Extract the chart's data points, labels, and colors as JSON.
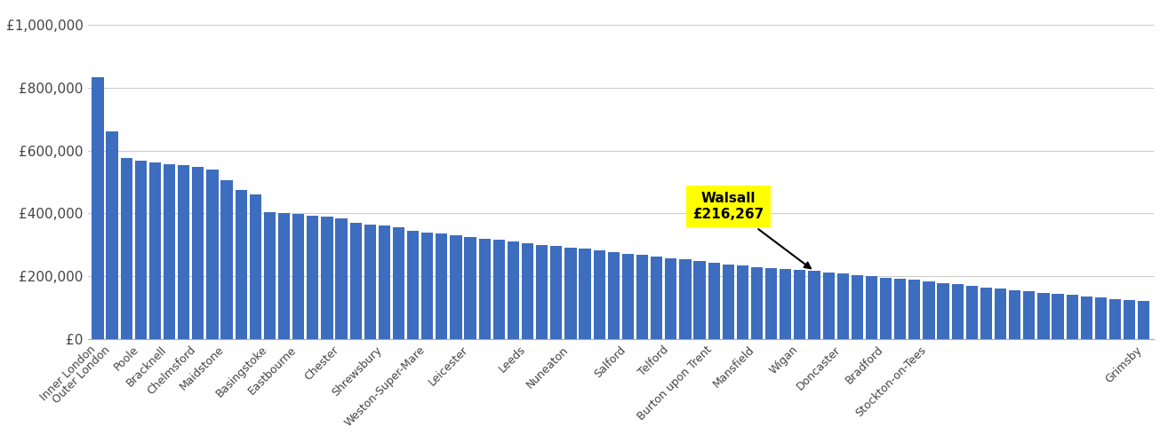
{
  "bar_color": "#3d6dbf",
  "annotation_bg": "#ffff00",
  "yticks": [
    0,
    200000,
    400000,
    600000,
    800000,
    1000000
  ],
  "ytick_labels": [
    "£0",
    "£200,000",
    "£400,000",
    "£600,000",
    "£800,000",
    "£1,000,000"
  ],
  "ylim": [
    0,
    1060000
  ],
  "bg_color": "#ffffff",
  "grid_color": "#cccccc",
  "highlight_label": "Walsall\n£216,267",
  "highlight_value": 216267,
  "all_values": [
    835000,
    660000,
    575000,
    567000,
    563000,
    558000,
    554000,
    548000,
    540000,
    505000,
    475000,
    460000,
    405000,
    400000,
    398000,
    393000,
    390000,
    383000,
    370000,
    365000,
    362000,
    356000,
    345000,
    340000,
    335000,
    330000,
    325000,
    318000,
    315000,
    310000,
    305000,
    300000,
    297000,
    292000,
    287000,
    283000,
    278000,
    272000,
    268000,
    262000,
    258000,
    253000,
    248000,
    243000,
    238000,
    234000,
    230000,
    227000,
    223000,
    220000,
    216267,
    212000,
    208000,
    203000,
    199000,
    196000,
    192000,
    188000,
    183000,
    178000,
    174000,
    170000,
    165000,
    160000,
    156000,
    152000,
    148000,
    144000,
    140000,
    136000,
    132000,
    128000,
    124000,
    121000
  ],
  "xtick_positions": [
    0,
    1,
    3,
    5,
    7,
    9,
    12,
    14,
    17,
    20,
    23,
    26,
    30,
    33,
    37,
    40,
    43,
    46,
    49,
    52,
    55,
    58,
    73
  ],
  "xtick_labels": [
    "Inner London",
    "Outer London",
    "Poole",
    "Bracknell",
    "Chelmsford",
    "Maidstone",
    "Basingstoke",
    "Eastbourne",
    "Chester",
    "Shrewsbury",
    "Weston-Super-Mare",
    "Leicester",
    "Leeds",
    "Nuneaton",
    "Salford",
    "Telford",
    "Burton upon Trent",
    "Mansfield",
    "Wigan",
    "Doncaster",
    "Bradford",
    "Stockton-on-Tees",
    "Grimsby"
  ],
  "walsall_idx": 50
}
